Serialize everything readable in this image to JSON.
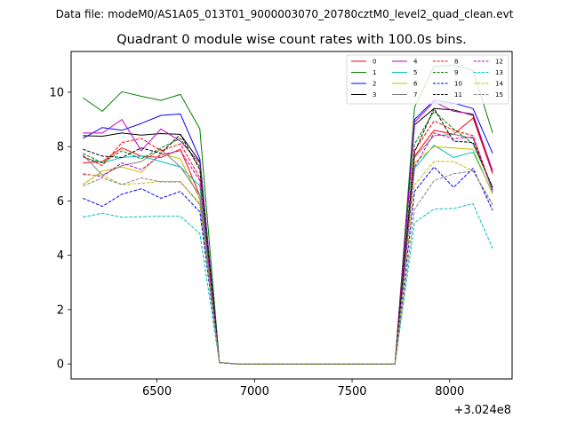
{
  "chart_data": {
    "type": "line",
    "suptitle": "Data file: modeM0/AS1A05_013T01_9000003070_20780cztM0_level2_quad_clean.evt",
    "title": "Quadrant 0 module wise count rates with 100.0s bins.",
    "xlabel": "",
    "ylabel": "",
    "x_offset_label": "+3.024e8",
    "xlim": [
      6060,
      8320
    ],
    "ylim": [
      -0.55,
      11.5
    ],
    "xticks": [
      6500,
      7000,
      7500,
      8000
    ],
    "xtick_labels": [
      "6500",
      "7000",
      "7500",
      "8000"
    ],
    "yticks": [
      0,
      2,
      4,
      6,
      8,
      10
    ],
    "ytick_labels": [
      "0",
      "2",
      "4",
      "6",
      "8",
      "10"
    ],
    "grid": false,
    "legend_position": "top-right",
    "x": [
      6120,
      6220,
      6320,
      6420,
      6520,
      6620,
      6720,
      6820,
      6920,
      7020,
      7120,
      7220,
      7320,
      7420,
      7520,
      7620,
      7720,
      7820,
      7920,
      8020,
      8120,
      8220
    ],
    "series": [
      {
        "name": "0",
        "color": "#ff0000",
        "dash": "solid",
        "values": [
          7.4,
          7.45,
          7.95,
          7.65,
          7.6,
          7.9,
          6.2,
          0.05,
          0.0,
          0.0,
          0.0,
          0.0,
          0.0,
          0.0,
          0.0,
          0.0,
          0.0,
          7.65,
          8.6,
          8.45,
          9.05,
          7.0
        ]
      },
      {
        "name": "1",
        "color": "#008000",
        "dash": "solid",
        "values": [
          9.8,
          9.3,
          10.02,
          9.85,
          9.7,
          9.92,
          8.65,
          0.05,
          0.0,
          0.0,
          0.0,
          0.0,
          0.0,
          0.0,
          0.0,
          0.0,
          0.0,
          9.45,
          10.95,
          11.0,
          10.8,
          8.5
        ]
      },
      {
        "name": "2",
        "color": "#0000ff",
        "dash": "solid",
        "values": [
          8.3,
          8.7,
          8.6,
          8.85,
          9.15,
          9.2,
          7.55,
          0.05,
          0.0,
          0.0,
          0.0,
          0.0,
          0.0,
          0.0,
          0.0,
          0.0,
          0.0,
          9.0,
          9.7,
          9.6,
          9.4,
          7.75
        ]
      },
      {
        "name": "3",
        "color": "#000000",
        "dash": "solid",
        "values": [
          8.4,
          8.38,
          8.5,
          8.42,
          8.48,
          8.45,
          7.45,
          0.05,
          0.0,
          0.0,
          0.0,
          0.0,
          0.0,
          0.0,
          0.0,
          0.0,
          0.0,
          8.8,
          9.4,
          9.35,
          9.15,
          7.1
        ]
      },
      {
        "name": "4",
        "color": "#bf00bf",
        "dash": "solid",
        "values": [
          8.5,
          8.5,
          9.0,
          7.85,
          8.65,
          8.2,
          7.4,
          0.05,
          0.0,
          0.0,
          0.0,
          0.0,
          0.0,
          0.0,
          0.0,
          0.0,
          0.0,
          8.9,
          9.65,
          9.3,
          9.2,
          7.1
        ]
      },
      {
        "name": "5",
        "color": "#00bfbf",
        "dash": "solid",
        "values": [
          7.6,
          7.4,
          7.6,
          7.65,
          7.45,
          7.25,
          6.55,
          0.05,
          0.0,
          0.0,
          0.0,
          0.0,
          0.0,
          0.0,
          0.0,
          0.0,
          0.0,
          7.2,
          8.05,
          7.6,
          7.8,
          6.3
        ]
      },
      {
        "name": "6",
        "color": "#bfbf00",
        "dash": "solid",
        "values": [
          6.6,
          7.1,
          7.25,
          7.05,
          7.75,
          7.55,
          6.05,
          0.05,
          0.0,
          0.0,
          0.0,
          0.0,
          0.0,
          0.0,
          0.0,
          0.0,
          0.0,
          7.4,
          8.0,
          7.95,
          7.9,
          6.25
        ]
      },
      {
        "name": "7",
        "color": "#808080",
        "dash": "solid",
        "values": [
          7.7,
          6.95,
          7.3,
          7.45,
          7.9,
          7.25,
          6.2,
          0.05,
          0.0,
          0.0,
          0.0,
          0.0,
          0.0,
          0.0,
          0.0,
          0.0,
          0.0,
          7.6,
          8.4,
          8.45,
          8.3,
          6.35
        ]
      },
      {
        "name": "8",
        "color": "#ff0000",
        "dash": "dashed",
        "values": [
          7.65,
          7.3,
          8.15,
          8.3,
          7.85,
          8.1,
          6.85,
          0.05,
          0.0,
          0.0,
          0.0,
          0.0,
          0.0,
          0.0,
          0.0,
          0.0,
          0.0,
          7.85,
          8.95,
          8.6,
          8.4,
          6.4
        ]
      },
      {
        "name": "9",
        "color": "#008000",
        "dash": "dashed",
        "values": [
          7.75,
          7.4,
          7.85,
          7.55,
          7.95,
          8.3,
          7.25,
          0.05,
          0.0,
          0.0,
          0.0,
          0.0,
          0.0,
          0.0,
          0.0,
          0.0,
          0.0,
          8.1,
          9.3,
          8.65,
          8.1,
          6.5
        ]
      },
      {
        "name": "10",
        "color": "#0000ff",
        "dash": "dashed",
        "values": [
          6.1,
          5.8,
          6.25,
          6.45,
          6.1,
          6.35,
          5.6,
          0.05,
          0.0,
          0.0,
          0.0,
          0.0,
          0.0,
          0.0,
          0.0,
          0.0,
          0.0,
          6.35,
          7.25,
          6.5,
          7.2,
          5.65
        ]
      },
      {
        "name": "11",
        "color": "#000000",
        "dash": "dashed",
        "values": [
          7.9,
          7.65,
          7.6,
          7.95,
          7.75,
          8.45,
          7.15,
          0.05,
          0.0,
          0.0,
          0.0,
          0.0,
          0.0,
          0.0,
          0.0,
          0.0,
          0.0,
          7.8,
          9.4,
          8.2,
          8.15,
          6.5
        ]
      },
      {
        "name": "12",
        "color": "#bf00bf",
        "dash": "dashed",
        "values": [
          7.0,
          6.9,
          7.4,
          7.15,
          7.7,
          7.85,
          6.75,
          0.05,
          0.0,
          0.0,
          0.0,
          0.0,
          0.0,
          0.0,
          0.0,
          0.0,
          0.0,
          7.25,
          8.5,
          8.3,
          8.35,
          6.4
        ]
      },
      {
        "name": "13",
        "color": "#00bfbf",
        "dash": "dashed",
        "values": [
          5.4,
          5.55,
          5.4,
          5.42,
          5.44,
          5.44,
          4.8,
          0.05,
          0.0,
          0.0,
          0.0,
          0.0,
          0.0,
          0.0,
          0.0,
          0.0,
          0.0,
          5.2,
          5.7,
          5.72,
          5.9,
          4.25
        ]
      },
      {
        "name": "14",
        "color": "#bfbf00",
        "dash": "dashed",
        "values": [
          6.95,
          6.95,
          6.6,
          6.65,
          6.72,
          6.72,
          5.85,
          0.05,
          0.0,
          0.0,
          0.0,
          0.0,
          0.0,
          0.0,
          0.0,
          0.0,
          0.0,
          6.6,
          7.45,
          7.45,
          7.1,
          5.9
        ]
      },
      {
        "name": "15",
        "color": "#808080",
        "dash": "dashed",
        "values": [
          6.55,
          6.85,
          6.6,
          6.85,
          6.7,
          6.7,
          5.9,
          0.05,
          0.0,
          0.0,
          0.0,
          0.0,
          0.0,
          0.0,
          0.0,
          0.0,
          0.0,
          5.7,
          6.75,
          7.0,
          7.1,
          5.85
        ]
      }
    ]
  }
}
